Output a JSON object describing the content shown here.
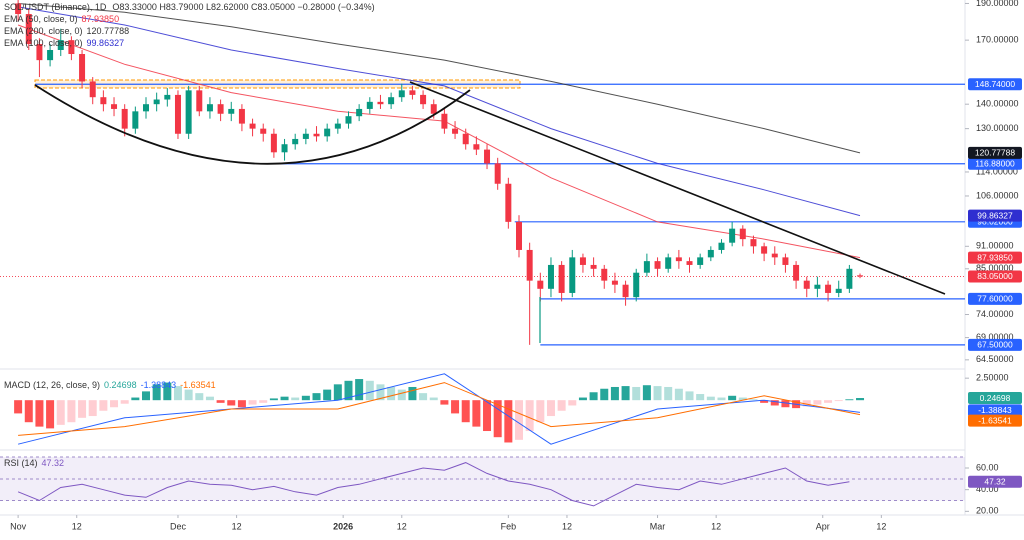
{
  "chart_data": [
    {
      "type": "candlestick",
      "title": "SOL/USDT (Binance), 1D",
      "legend_text": "O83.33000 H83.79000 L82.62000 C83.05000 −0.28000 (−0.34%)",
      "x": [
        0,
        2,
        4,
        6,
        8,
        10,
        12,
        14,
        16,
        18,
        20,
        22,
        24,
        26,
        28,
        30,
        32,
        34,
        36,
        38,
        40,
        42,
        44,
        46,
        48,
        50,
        52,
        54,
        56,
        58,
        60,
        62,
        64,
        66,
        68,
        70,
        72,
        74,
        76,
        78,
        80,
        82,
        84,
        86,
        88,
        90,
        92,
        94,
        96,
        98,
        100,
        102,
        104,
        106,
        108,
        110,
        112,
        114,
        116,
        118,
        120,
        122,
        124,
        126,
        128,
        130,
        132,
        134,
        136,
        138,
        140,
        142,
        144,
        146,
        148,
        150,
        152,
        154,
        156,
        158
      ],
      "open": [
        190,
        184,
        168,
        160,
        165,
        170,
        163,
        150,
        143,
        140,
        138,
        130,
        137,
        140,
        142,
        144,
        128,
        146,
        137,
        140,
        136,
        138,
        132,
        130,
        128,
        121,
        124,
        126,
        128,
        127,
        130,
        132,
        135,
        138,
        141,
        140,
        143,
        146,
        144,
        140,
        136,
        130,
        128,
        124,
        122,
        117,
        110,
        98,
        90,
        82,
        80,
        86,
        79,
        88,
        86,
        85,
        82,
        81,
        78,
        84,
        87,
        85,
        88,
        87,
        86,
        88,
        90,
        92,
        96,
        93,
        91,
        89,
        88,
        86,
        82,
        80,
        81,
        79,
        80,
        83.33
      ],
      "high": [
        194,
        187,
        171,
        168,
        176,
        172,
        165,
        152,
        146,
        143,
        140,
        139,
        143,
        145,
        147,
        146,
        148,
        148,
        143,
        142,
        141,
        140,
        134,
        132,
        130,
        126,
        128,
        130,
        131,
        132,
        134,
        137,
        140,
        143,
        144,
        145,
        149,
        148,
        146,
        142,
        138,
        133,
        130,
        127,
        124,
        119,
        112,
        100,
        92,
        84,
        88,
        87,
        90,
        89,
        88,
        86,
        84,
        82,
        85,
        89,
        88,
        89,
        90,
        88,
        89,
        91,
        93,
        98,
        97,
        94,
        92,
        91,
        89,
        87,
        83,
        83,
        82,
        82,
        86,
        83.79
      ],
      "low": [
        180,
        165,
        152,
        157,
        162,
        160,
        147,
        140,
        137,
        135,
        127,
        128,
        134,
        137,
        139,
        126,
        126,
        135,
        134,
        133,
        133,
        129,
        127,
        125,
        119,
        118,
        122,
        124,
        125,
        125,
        128,
        130,
        133,
        136,
        138,
        138,
        141,
        142,
        138,
        134,
        128,
        126,
        122,
        120,
        115,
        108,
        96,
        88,
        67.5,
        77,
        78,
        77,
        78,
        84,
        83,
        80,
        79,
        76,
        77,
        83,
        83,
        84,
        85,
        84,
        85,
        87,
        89,
        91,
        91,
        89,
        87,
        86,
        84,
        80,
        78,
        78,
        77,
        78,
        79,
        82.62
      ],
      "close": [
        184,
        168,
        160,
        165,
        170,
        163,
        150,
        143,
        140,
        138,
        130,
        137,
        140,
        142,
        144,
        128,
        146,
        137,
        140,
        136,
        138,
        132,
        130,
        128,
        121,
        124,
        126,
        128,
        127,
        130,
        132,
        135,
        138,
        141,
        140,
        143,
        146,
        144,
        140,
        136,
        130,
        128,
        124,
        122,
        117,
        110,
        98,
        90,
        82,
        80,
        86,
        79,
        88,
        86,
        85,
        82,
        81,
        78,
        84,
        87,
        85,
        88,
        87,
        86,
        88,
        90,
        92,
        96,
        93,
        91,
        89,
        88,
        86,
        82,
        80,
        81,
        79,
        80,
        85,
        83.05
      ],
      "up_color": "#089981",
      "down_color": "#f23645",
      "last_price_label": "83.05000",
      "log_scale": true,
      "ylim": [
        63.5,
        192
      ],
      "yticks": [
        {
          "value": 190,
          "label": "190.00000"
        },
        {
          "value": 170,
          "label": "170.00000"
        },
        {
          "value": 140,
          "label": "140.00000"
        },
        {
          "value": 130,
          "label": "130.00000"
        },
        {
          "value": 114,
          "label": "114.00000"
        },
        {
          "value": 106,
          "label": "106.00000"
        },
        {
          "value": 91,
          "label": "91.00000"
        },
        {
          "value": 85,
          "label": "85.00000"
        },
        {
          "value": 74,
          "label": "74.00000"
        },
        {
          "value": 69,
          "label": "69.00000"
        },
        {
          "value": 64.5,
          "label": "64.50000"
        }
      ],
      "xlim": [
        -3.4,
        177.7
      ],
      "xticks": [
        {
          "value": 0,
          "label": "Nov"
        },
        {
          "value": 11,
          "label": "12"
        },
        {
          "value": 30,
          "label": "Dec"
        },
        {
          "value": 41,
          "label": "12"
        },
        {
          "value": 61,
          "label": "2026"
        },
        {
          "value": 72,
          "label": "12"
        },
        {
          "value": 92,
          "label": "Feb"
        },
        {
          "value": 103,
          "label": "12"
        },
        {
          "value": 120,
          "label": "Mar"
        },
        {
          "value": 131,
          "label": "12"
        },
        {
          "value": 151,
          "label": "Apr"
        },
        {
          "value": 162,
          "label": "12"
        }
      ],
      "series": [
        {
          "name": "EMA (50, close, 0)",
          "color": "#f23645",
          "x": [
            0,
            20,
            40,
            60,
            80,
            100,
            120,
            140,
            158
          ],
          "values": [
            178,
            158,
            145,
            137,
            133,
            112,
            98,
            93,
            87.9385
          ],
          "last_value_label": "87.93850"
        },
        {
          "name": "EMA (200, close, 0)",
          "color": "#333333",
          "x": [
            0,
            20,
            40,
            60,
            80,
            100,
            120,
            140,
            158
          ],
          "values": [
            190,
            185,
            177,
            168,
            160,
            150,
            140,
            130,
            120.77788
          ],
          "last_value_label": "120.77788"
        },
        {
          "name": "EMA (100, close, 0)",
          "color": "#2f2fd0",
          "x": [
            0,
            20,
            40,
            60,
            80,
            100,
            120,
            140,
            158
          ],
          "values": [
            188,
            178,
            165,
            156,
            148,
            130,
            117,
            108,
            99.86327
          ],
          "last_value_label": "99.86327"
        }
      ],
      "levels": [
        {
          "value": 148.74,
          "label": "148.74000",
          "from": 3.2
        },
        {
          "value": 116.88,
          "label": "116.88000",
          "from": 48.2
        },
        {
          "value": 98.02,
          "label": "98.02000",
          "from": 93.2
        },
        {
          "value": 77.6,
          "label": "77.60000",
          "from": 98
        },
        {
          "value": 67.5,
          "label": "67.50000",
          "from": 98
        }
      ],
      "level_color": "#2962ff"
    },
    {
      "type": "macd",
      "title": "MACD (12, 26, close, 9)",
      "x": [
        0,
        2,
        4,
        6,
        8,
        10,
        12,
        14,
        16,
        18,
        20,
        22,
        24,
        26,
        28,
        30,
        32,
        34,
        36,
        38,
        40,
        42,
        44,
        46,
        48,
        50,
        52,
        54,
        56,
        58,
        60,
        62,
        64,
        66,
        68,
        70,
        72,
        74,
        76,
        78,
        80,
        82,
        84,
        86,
        88,
        90,
        92,
        94,
        96,
        98,
        100,
        102,
        104,
        106,
        108,
        110,
        112,
        114,
        116,
        118,
        120,
        122,
        124,
        126,
        128,
        130,
        132,
        134,
        136,
        138,
        140,
        142,
        144,
        146,
        148,
        150,
        152,
        154,
        156,
        158
      ],
      "histogram": {
        "values": [
          -1.5,
          -2.5,
          -3,
          -3.2,
          -2.8,
          -2.5,
          -2,
          -1.8,
          -1.2,
          -0.8,
          -0.4,
          0.3,
          1,
          1.8,
          2,
          1.6,
          1.2,
          0.8,
          0.4,
          -0.3,
          -0.6,
          -0.8,
          -0.5,
          -0.3,
          0.2,
          0.4,
          0.3,
          0.5,
          0.8,
          1.2,
          1.8,
          2.2,
          2.4,
          2.2,
          1.8,
          1.5,
          1.2,
          1.5,
          0.8,
          0.3,
          -0.5,
          -1.5,
          -2.5,
          -3,
          -3.5,
          -4.2,
          -4.8,
          -4.5,
          -3.5,
          -2.5,
          -1.8,
          -1.2,
          -0.6,
          0.3,
          0.9,
          1.3,
          1.5,
          1.6,
          1.5,
          1.7,
          1.6,
          1.5,
          1.3,
          1,
          0.7,
          0.4,
          0.3,
          0.5,
          0.3,
          0.1,
          -0.3,
          -0.6,
          -0.8,
          -0.9,
          -0.7,
          -0.5,
          -0.3,
          -0.1,
          0.1,
          0.24698
        ],
        "last_value_label": "0.24698",
        "colors": {
          "grow_above": "#26a69a",
          "fall_above": "#b2dfdb",
          "grow_below": "#ffcdd2",
          "fall_below": "#ff5252"
        }
      },
      "series": [
        {
          "color": "#2962ff",
          "x": [
            0,
            20,
            40,
            60,
            80,
            100,
            120,
            140,
            158
          ],
          "values": [
            -5,
            -2,
            -1,
            0,
            3,
            -5,
            -1,
            0,
            -1.38843
          ],
          "last_value_label": "-1.38843"
        },
        {
          "color": "#ff6d00",
          "x": [
            0,
            20,
            40,
            60,
            80,
            100,
            120,
            140,
            158
          ],
          "values": [
            -4,
            -3,
            -1,
            -1,
            2,
            -3,
            -2,
            0.5,
            -1.63541
          ],
          "last_value_label": "-1.63541"
        }
      ],
      "ylim": [
        -5.2,
        3.2
      ],
      "yticks": [
        {
          "value": 2.5,
          "label": "2.50000"
        }
      ]
    },
    {
      "type": "line",
      "title": "RSI (14)",
      "x": [
        0,
        4,
        8,
        12,
        16,
        20,
        24,
        28,
        32,
        36,
        40,
        44,
        48,
        52,
        56,
        60,
        64,
        68,
        72,
        76,
        80,
        84,
        88,
        92,
        96,
        100,
        104,
        108,
        112,
        116,
        120,
        124,
        128,
        132,
        136,
        140,
        144,
        148,
        152,
        156
      ],
      "values": [
        38,
        30,
        42,
        45,
        40,
        35,
        33,
        42,
        48,
        45,
        44,
        40,
        43,
        38,
        35,
        42,
        45,
        50,
        55,
        60,
        58,
        65,
        55,
        48,
        45,
        40,
        30,
        25,
        35,
        45,
        42,
        40,
        48,
        45,
        50,
        55,
        60,
        48,
        44,
        47.32
      ],
      "color": "#7e57c2",
      "last_value_label": "47.32",
      "ylim": [
        12,
        72
      ],
      "yticks": [
        {
          "value": 60,
          "label": "60.00"
        },
        {
          "value": 40,
          "label": "40.00"
        },
        {
          "value": 20,
          "label": "20.00"
        }
      ]
    }
  ]
}
